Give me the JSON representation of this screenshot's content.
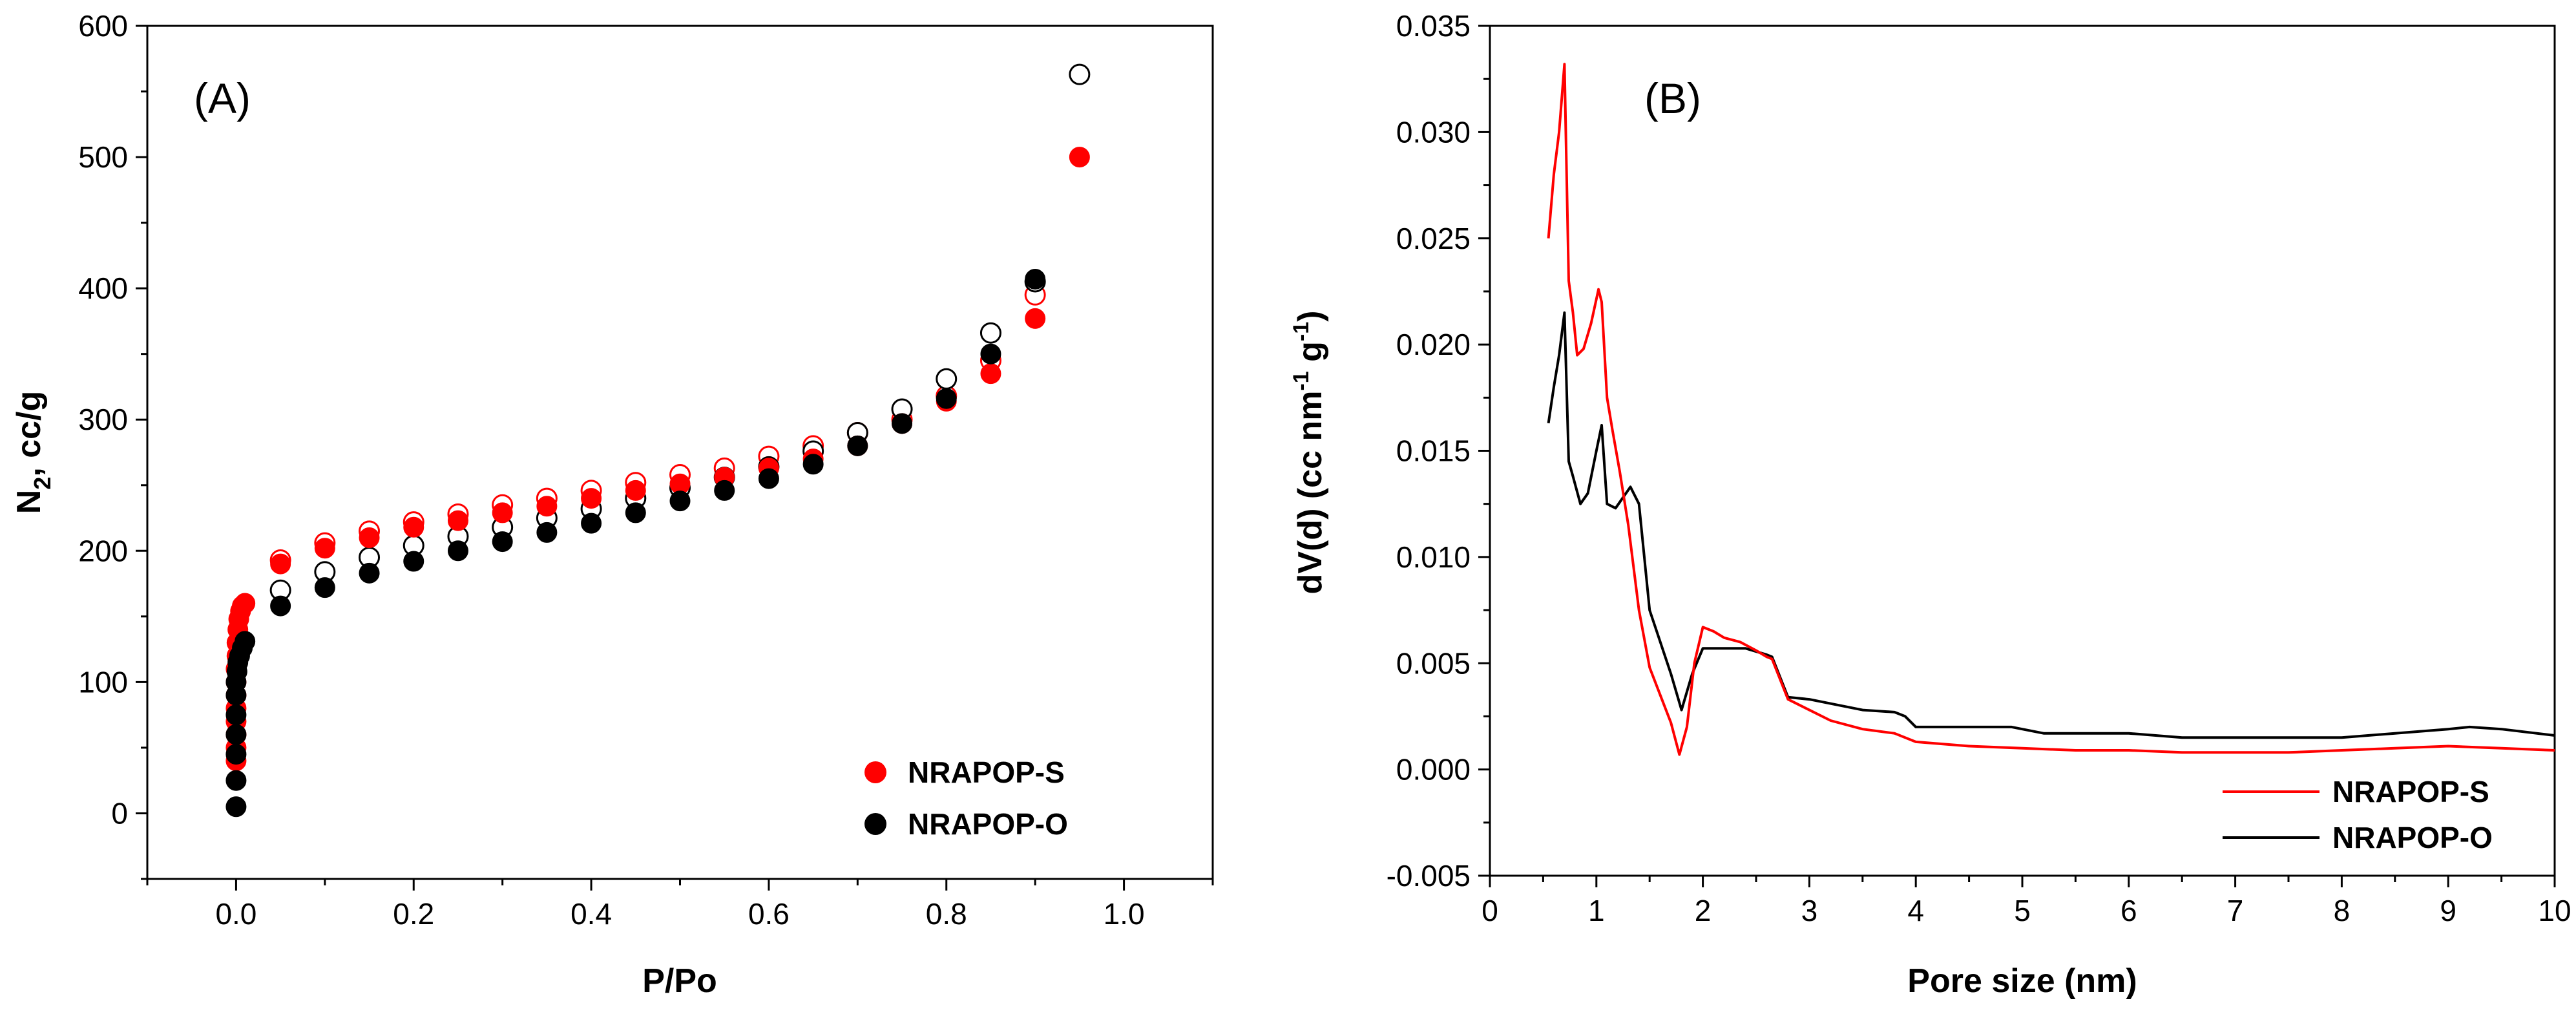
{
  "chart_data": [
    {
      "type": "scatter",
      "panel_label": "(A)",
      "xlabel": "P/Po",
      "ylabel": "N",
      "ylabel_subscript": "2",
      "ylabel_suffix": ", cc/g",
      "xlim": [
        -0.1,
        1.1
      ],
      "ylim": [
        -50,
        600
      ],
      "x_ticks": [
        0.0,
        0.2,
        0.4,
        0.6,
        0.8,
        1.0
      ],
      "x_tick_labels": [
        "0.0",
        "0.2",
        "0.4",
        "0.6",
        "0.8",
        "1.0"
      ],
      "y_ticks": [
        0,
        100,
        200,
        300,
        400,
        500,
        600
      ],
      "y_tick_labels": [
        "0",
        "100",
        "200",
        "300",
        "400",
        "500",
        "600"
      ],
      "grid": false,
      "legend_position": "bottom-right",
      "series": [
        {
          "name": "NRAPOP-S",
          "color": "#ff0000",
          "adsorption": {
            "x": [
              0.0,
              0.0,
              0.0,
              0.0,
              0.0,
              0.0,
              0.0,
              0.0,
              0.001,
              0.001,
              0.002,
              0.003,
              0.005,
              0.007,
              0.01,
              0.05,
              0.1,
              0.15,
              0.2,
              0.25,
              0.3,
              0.35,
              0.4,
              0.45,
              0.5,
              0.55,
              0.6,
              0.65,
              0.7,
              0.75,
              0.8,
              0.85,
              0.9,
              0.95
            ],
            "y": [
              40,
              50,
              60,
              70,
              80,
              90,
              100,
              110,
              120,
              130,
              140,
              148,
              154,
              158,
              160,
              190,
              202,
              210,
              218,
              223,
              229,
              234,
              240,
              246,
              251,
              256,
              263,
              270,
              280,
              297,
              314,
              335,
              377,
              500
            ]
          },
          "desorption": {
            "x": [
              0.05,
              0.1,
              0.15,
              0.2,
              0.25,
              0.3,
              0.35,
              0.4,
              0.45,
              0.5,
              0.55,
              0.6,
              0.65,
              0.7,
              0.75,
              0.8,
              0.85,
              0.9
            ],
            "y": [
              193,
              206,
              215,
              222,
              228,
              235,
              240,
              246,
              252,
              258,
              263,
              272,
              280,
              290,
              300,
              318,
              345,
              395
            ]
          }
        },
        {
          "name": "NRAPOP-O",
          "color": "#000000",
          "adsorption": {
            "x": [
              0.0,
              0.0,
              0.0,
              0.0,
              0.0,
              0.0,
              0.0,
              0.001,
              0.002,
              0.004,
              0.007,
              0.01,
              0.05,
              0.1,
              0.15,
              0.2,
              0.25,
              0.3,
              0.35,
              0.4,
              0.45,
              0.5,
              0.55,
              0.6,
              0.65,
              0.7,
              0.75,
              0.8,
              0.85,
              0.9
            ],
            "y": [
              5,
              25,
              45,
              60,
              75,
              90,
              100,
              108,
              115,
              120,
              126,
              131,
              158,
              172,
              183,
              192,
              200,
              207,
              214,
              221,
              229,
              238,
              246,
              255,
              266,
              280,
              297,
              316,
              350,
              407
            ]
          },
          "desorption": {
            "x": [
              0.05,
              0.1,
              0.15,
              0.2,
              0.25,
              0.3,
              0.35,
              0.4,
              0.45,
              0.5,
              0.55,
              0.6,
              0.65,
              0.7,
              0.75,
              0.8,
              0.85,
              0.9,
              0.95
            ],
            "y": [
              170,
              184,
              195,
              204,
              211,
              218,
              225,
              232,
              240,
              248,
              256,
              264,
              276,
              290,
              308,
              331,
              366,
              405,
              563
            ]
          }
        }
      ]
    },
    {
      "type": "line",
      "panel_label": "(B)",
      "xlabel": "Pore size (nm)",
      "ylabel": "dV(d) (cc nm",
      "ylabel_sup1": "-1",
      "ylabel_mid": " g",
      "ylabel_sup2": "-1",
      "ylabel_end": ")",
      "xlim": [
        0,
        10
      ],
      "ylim": [
        -0.005,
        0.035
      ],
      "x_ticks": [
        0,
        1,
        2,
        3,
        4,
        5,
        6,
        7,
        8,
        9,
        10
      ],
      "x_tick_labels": [
        "0",
        "1",
        "2",
        "3",
        "4",
        "5",
        "6",
        "7",
        "8",
        "9",
        "10"
      ],
      "y_ticks": [
        -0.005,
        0.0,
        0.005,
        0.01,
        0.015,
        0.02,
        0.025,
        0.03,
        0.035
      ],
      "y_tick_labels": [
        "-0.005",
        "0.000",
        "0.005",
        "0.010",
        "0.015",
        "0.020",
        "0.025",
        "0.030",
        "0.035"
      ],
      "grid": false,
      "legend_position": "bottom-right",
      "series": [
        {
          "name": "NRAPOP-S",
          "color": "#ff0000",
          "x": [
            0.55,
            0.6,
            0.65,
            0.7,
            0.74,
            0.78,
            0.82,
            0.88,
            0.95,
            1.02,
            1.05,
            1.1,
            1.15,
            1.22,
            1.3,
            1.4,
            1.5,
            1.6,
            1.7,
            1.78,
            1.85,
            1.92,
            2.0,
            2.1,
            2.2,
            2.35,
            2.5,
            2.6,
            2.65,
            2.8,
            3.0,
            3.2,
            3.5,
            3.8,
            4.0,
            4.5,
            5.0,
            5.5,
            6.0,
            6.5,
            7.0,
            7.5,
            8.0,
            8.5,
            9.0,
            9.5,
            10.0
          ],
          "y": [
            0.025,
            0.028,
            0.03,
            0.0332,
            0.023,
            0.0215,
            0.0195,
            0.0198,
            0.021,
            0.0226,
            0.022,
            0.0175,
            0.016,
            0.014,
            0.0115,
            0.0075,
            0.0048,
            0.0035,
            0.0022,
            0.0007,
            0.002,
            0.005,
            0.0067,
            0.0065,
            0.0062,
            0.006,
            0.0056,
            0.0053,
            0.0052,
            0.0033,
            0.0028,
            0.0023,
            0.0019,
            0.0017,
            0.0013,
            0.0011,
            0.001,
            0.0009,
            0.0009,
            0.0008,
            0.0008,
            0.0008,
            0.0009,
            0.001,
            0.0011,
            0.001,
            0.0009
          ]
        },
        {
          "name": "NRAPOP-O",
          "color": "#000000",
          "x": [
            0.55,
            0.6,
            0.65,
            0.7,
            0.74,
            0.78,
            0.85,
            0.92,
            1.0,
            1.05,
            1.1,
            1.18,
            1.25,
            1.32,
            1.4,
            1.5,
            1.6,
            1.7,
            1.8,
            1.9,
            2.0,
            2.2,
            2.4,
            2.6,
            2.65,
            2.8,
            3.0,
            3.2,
            3.5,
            3.8,
            3.9,
            4.0,
            4.5,
            4.9,
            5.2,
            5.5,
            6.0,
            6.5,
            7.0,
            7.5,
            8.0,
            8.5,
            9.0,
            9.2,
            9.5,
            10.0
          ],
          "y": [
            0.0163,
            0.018,
            0.0195,
            0.0215,
            0.0145,
            0.0138,
            0.0125,
            0.013,
            0.015,
            0.0162,
            0.0125,
            0.0123,
            0.0128,
            0.0133,
            0.0125,
            0.0075,
            0.006,
            0.0045,
            0.0028,
            0.0045,
            0.0057,
            0.0057,
            0.0057,
            0.0054,
            0.0053,
            0.0034,
            0.0033,
            0.0031,
            0.0028,
            0.0027,
            0.0025,
            0.002,
            0.002,
            0.002,
            0.0017,
            0.0017,
            0.0017,
            0.0015,
            0.0015,
            0.0015,
            0.0015,
            0.0017,
            0.0019,
            0.002,
            0.0019,
            0.0016
          ]
        }
      ]
    }
  ]
}
